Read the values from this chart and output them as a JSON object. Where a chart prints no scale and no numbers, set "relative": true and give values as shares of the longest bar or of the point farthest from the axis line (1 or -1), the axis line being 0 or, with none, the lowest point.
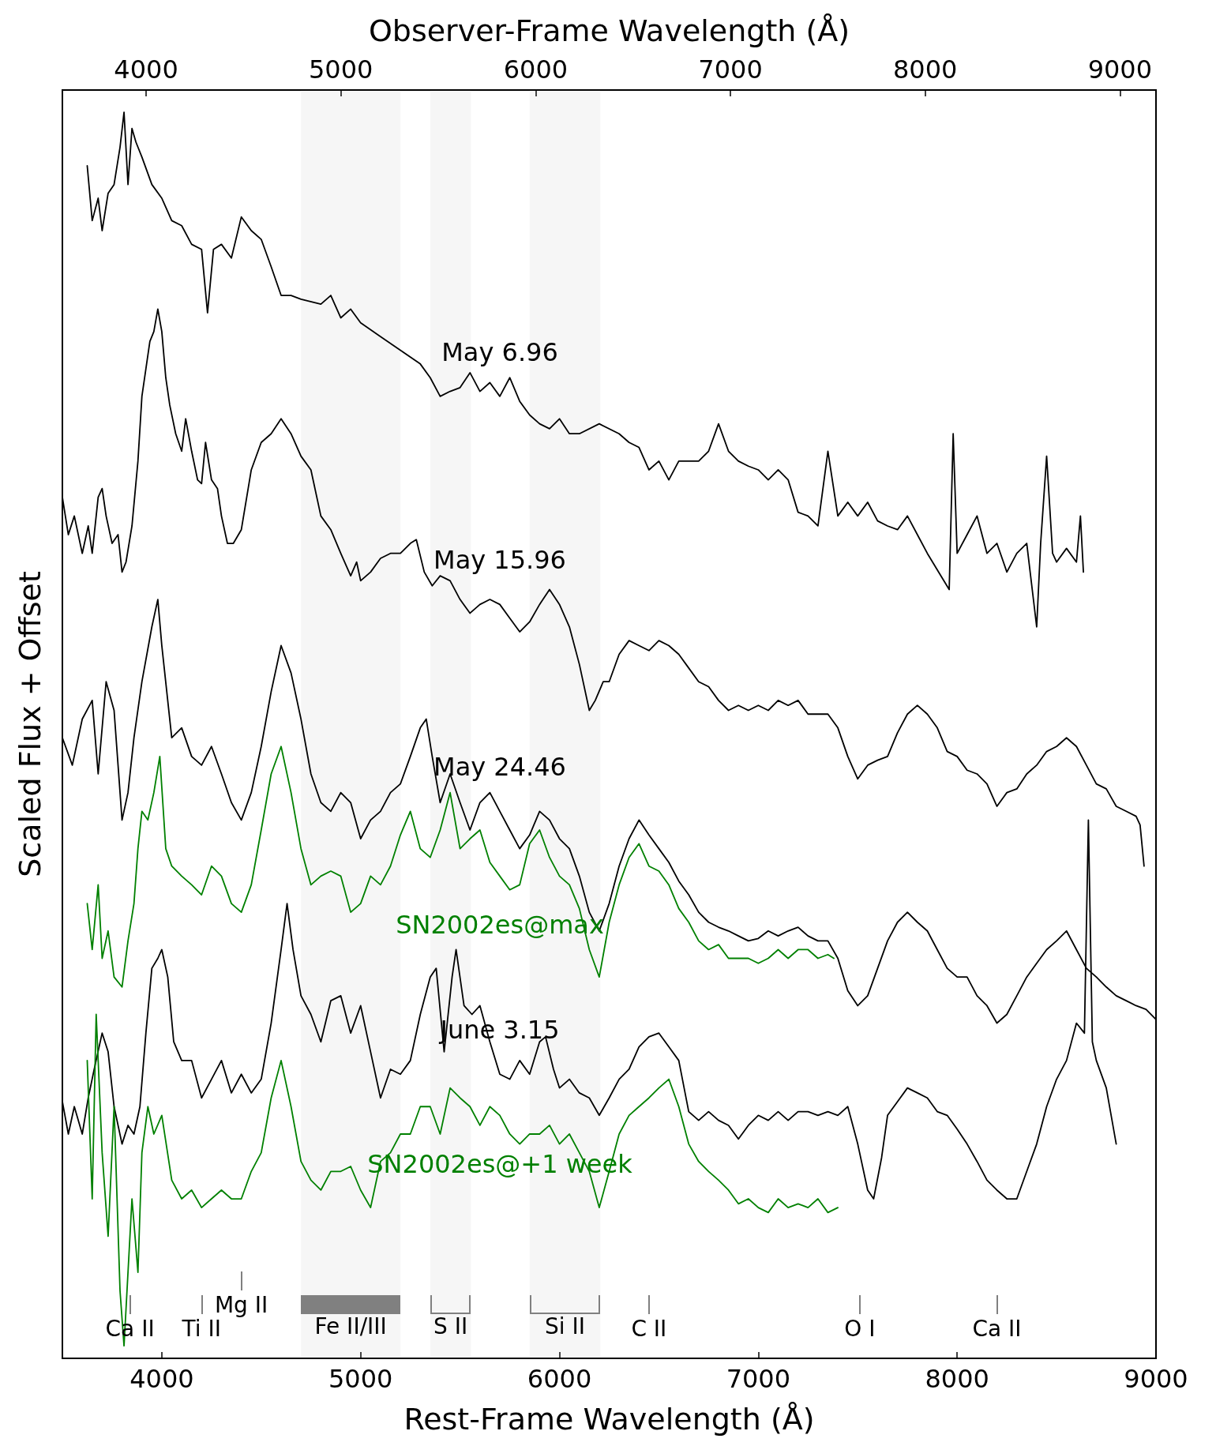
{
  "chart_data": {
    "type": "line",
    "relative": true,
    "xlabel": "Rest-Frame Wavelength (Å)",
    "x2label": "Observer-Frame Wavelength (Å)",
    "ylabel": "Scaled Flux + Offset",
    "xlim": [
      3500,
      9000
    ],
    "xticks": [
      4000,
      5000,
      6000,
      7000,
      8000,
      9000
    ],
    "x2lim": [
      3570,
      9185
    ],
    "x2ticks": [
      4000,
      5000,
      6000,
      7000,
      8000,
      9000
    ],
    "legend": false,
    "grid": false,
    "series": [
      {
        "name": "May 6.96",
        "color": "#000000",
        "x": [
          3625,
          3650,
          3680,
          3700,
          3730,
          3760,
          3790,
          3810,
          3830,
          3850,
          3870,
          3900,
          3950,
          4000,
          4050,
          4100,
          4150,
          4200,
          4230,
          4260,
          4300,
          4350,
          4400,
          4450,
          4500,
          4550,
          4600,
          4650,
          4700,
          4800,
          4850,
          4900,
          4950,
          5000,
          5100,
          5200,
          5300,
          5350,
          5400,
          5450,
          5500,
          5550,
          5600,
          5650,
          5700,
          5750,
          5800,
          5850,
          5900,
          5950,
          6000,
          6050,
          6100,
          6200,
          6300,
          6350,
          6400,
          6450,
          6500,
          6550,
          6600,
          6700,
          6750,
          6800,
          6850,
          6900,
          6950,
          7000,
          7050,
          7100,
          7150,
          7200,
          7250,
          7300,
          7350,
          7400,
          7450,
          7500,
          7550,
          7600,
          7650,
          7700,
          7750,
          7800,
          7850,
          7960,
          7980,
          8000,
          8050,
          8100,
          8150,
          8200,
          8250,
          8300,
          8350,
          8400,
          8420,
          8450,
          8480,
          8500,
          8550,
          8600,
          8620,
          8635
        ],
        "values": [
          0.957,
          0.913,
          0.931,
          0.905,
          0.935,
          0.942,
          0.972,
          1,
          0.942,
          0.987,
          0.976,
          0.964,
          0.942,
          0.931,
          0.913,
          0.909,
          0.894,
          0.89,
          0.839,
          0.89,
          0.894,
          0.883,
          0.916,
          0.905,
          0.898,
          0.876,
          0.853,
          0.853,
          0.85,
          0.846,
          0.853,
          0.835,
          0.842,
          0.831,
          0.82,
          0.809,
          0.798,
          0.787,
          0.772,
          0.776,
          0.779,
          0.791,
          0.776,
          0.783,
          0.772,
          0.787,
          0.768,
          0.757,
          0.75,
          0.746,
          0.754,
          0.742,
          0.742,
          0.75,
          0.742,
          0.735,
          0.731,
          0.713,
          0.72,
          0.705,
          0.72,
          0.72,
          0.728,
          0.75,
          0.728,
          0.72,
          0.716,
          0.713,
          0.705,
          0.713,
          0.705,
          0.679,
          0.676,
          0.668,
          0.728,
          0.676,
          0.687,
          0.676,
          0.687,
          0.672,
          0.668,
          0.665,
          0.676,
          0.661,
          0.646,
          0.617,
          0.742,
          0.646,
          0.661,
          0.676,
          0.646,
          0.654,
          0.631,
          0.646,
          0.654,
          0.587,
          0.654,
          0.724,
          0.646,
          0.639,
          0.65,
          0.639,
          0.676,
          0.631
        ]
      },
      {
        "name": "May 15.96",
        "color": "#000000",
        "x": [
          3500,
          3530,
          3560,
          3600,
          3630,
          3650,
          3680,
          3700,
          3720,
          3750,
          3780,
          3800,
          3820,
          3850,
          3880,
          3900,
          3920,
          3940,
          3960,
          3980,
          4000,
          4020,
          4040,
          4070,
          4100,
          4120,
          4150,
          4180,
          4200,
          4220,
          4250,
          4280,
          4300,
          4330,
          4360,
          4400,
          4450,
          4500,
          4550,
          4600,
          4650,
          4700,
          4750,
          4800,
          4850,
          4900,
          4950,
          4980,
          5000,
          5050,
          5100,
          5150,
          5200,
          5250,
          5280,
          5320,
          5360,
          5400,
          5450,
          5500,
          5550,
          5600,
          5650,
          5700,
          5750,
          5800,
          5850,
          5900,
          5950,
          6000,
          6050,
          6100,
          6150,
          6180,
          6220,
          6250,
          6300,
          6350,
          6400,
          6450,
          6500,
          6550,
          6600,
          6650,
          6700,
          6750,
          6800,
          6850,
          6900,
          6950,
          7000,
          7050,
          7100,
          7150,
          7200,
          7250,
          7300,
          7350,
          7400,
          7450,
          7500,
          7550,
          7600,
          7650,
          7700,
          7750,
          7800,
          7850,
          7900,
          7950,
          8000,
          8050,
          8100,
          8150,
          8200,
          8250,
          8300,
          8350,
          8400,
          8450,
          8500,
          8550,
          8600,
          8650,
          8700,
          8750,
          8800,
          8850,
          8900,
          8920,
          8940
        ],
        "values": [
          0.691,
          0.661,
          0.676,
          0.646,
          0.668,
          0.646,
          0.691,
          0.698,
          0.676,
          0.654,
          0.661,
          0.631,
          0.639,
          0.668,
          0.72,
          0.772,
          0.794,
          0.816,
          0.824,
          0.842,
          0.824,
          0.787,
          0.765,
          0.742,
          0.728,
          0.754,
          0.728,
          0.705,
          0.702,
          0.735,
          0.705,
          0.698,
          0.676,
          0.654,
          0.654,
          0.665,
          0.713,
          0.735,
          0.742,
          0.754,
          0.742,
          0.724,
          0.713,
          0.676,
          0.665,
          0.646,
          0.628,
          0.639,
          0.624,
          0.631,
          0.642,
          0.646,
          0.646,
          0.654,
          0.657,
          0.631,
          0.62,
          0.628,
          0.624,
          0.609,
          0.598,
          0.605,
          0.609,
          0.605,
          0.594,
          0.583,
          0.591,
          0.605,
          0.617,
          0.605,
          0.587,
          0.557,
          0.52,
          0.528,
          0.543,
          0.543,
          0.565,
          0.576,
          0.572,
          0.568,
          0.576,
          0.572,
          0.565,
          0.554,
          0.543,
          0.539,
          0.528,
          0.52,
          0.524,
          0.52,
          0.524,
          0.52,
          0.528,
          0.524,
          0.528,
          0.517,
          0.517,
          0.517,
          0.506,
          0.483,
          0.465,
          0.476,
          0.48,
          0.483,
          0.502,
          0.517,
          0.524,
          0.517,
          0.506,
          0.487,
          0.483,
          0.472,
          0.469,
          0.461,
          0.443,
          0.454,
          0.457,
          0.469,
          0.476,
          0.487,
          0.491,
          0.498,
          0.491,
          0.476,
          0.461,
          0.457,
          0.443,
          0.439,
          0.435,
          0.428,
          0.395
        ]
      },
      {
        "name": "May 24.46",
        "color": "#000000",
        "x": [
          3500,
          3550,
          3600,
          3650,
          3680,
          3720,
          3760,
          3780,
          3800,
          3830,
          3860,
          3900,
          3950,
          3980,
          4000,
          4050,
          4100,
          4150,
          4200,
          4250,
          4300,
          4350,
          4400,
          4450,
          4500,
          4550,
          4600,
          4650,
          4700,
          4750,
          4800,
          4850,
          4900,
          4950,
          5000,
          5050,
          5100,
          5150,
          5200,
          5250,
          5300,
          5330,
          5360,
          5400,
          5450,
          5500,
          5550,
          5600,
          5650,
          5700,
          5750,
          5800,
          5850,
          5900,
          5950,
          6000,
          6050,
          6100,
          6150,
          6200,
          6250,
          6300,
          6350,
          6400,
          6450,
          6500,
          6550,
          6600,
          6650,
          6700,
          6750,
          6800,
          6850,
          6900,
          6950,
          7000,
          7050,
          7100,
          7150,
          7200,
          7250,
          7300,
          7350,
          7400,
          7450,
          7500,
          7550,
          7600,
          7650,
          7700,
          7750,
          7800,
          7850,
          7900,
          7950,
          8000,
          8050,
          8100,
          8150,
          8200,
          8250,
          8300,
          8350,
          8400,
          8450,
          8500,
          8550,
          8600,
          8650,
          8700,
          8750,
          8800,
          8850,
          8900,
          8950,
          9000
        ],
        "values": [
          0.498,
          0.476,
          0.513,
          0.528,
          0.469,
          0.543,
          0.52,
          0.476,
          0.432,
          0.454,
          0.498,
          0.543,
          0.587,
          0.609,
          0.572,
          0.498,
          0.506,
          0.483,
          0.476,
          0.491,
          0.469,
          0.446,
          0.432,
          0.454,
          0.491,
          0.535,
          0.572,
          0.55,
          0.513,
          0.469,
          0.446,
          0.439,
          0.454,
          0.446,
          0.417,
          0.432,
          0.439,
          0.454,
          0.461,
          0.483,
          0.506,
          0.513,
          0.483,
          0.446,
          0.469,
          0.446,
          0.424,
          0.446,
          0.454,
          0.439,
          0.424,
          0.409,
          0.42,
          0.439,
          0.432,
          0.417,
          0.409,
          0.387,
          0.358,
          0.343,
          0.365,
          0.395,
          0.417,
          0.432,
          0.42,
          0.409,
          0.398,
          0.383,
          0.372,
          0.358,
          0.35,
          0.346,
          0.343,
          0.339,
          0.335,
          0.337,
          0.343,
          0.339,
          0.343,
          0.346,
          0.339,
          0.335,
          0.335,
          0.321,
          0.295,
          0.283,
          0.291,
          0.313,
          0.335,
          0.35,
          0.358,
          0.35,
          0.343,
          0.328,
          0.313,
          0.306,
          0.306,
          0.291,
          0.283,
          0.269,
          0.276,
          0.291,
          0.306,
          0.317,
          0.328,
          0.335,
          0.343,
          0.328,
          0.313,
          0.306,
          0.298,
          0.291,
          0.287,
          0.283,
          0.28,
          0.272
        ]
      },
      {
        "name": "SN2002es@max",
        "color": "#008000",
        "x": [
          3625,
          3650,
          3680,
          3700,
          3730,
          3760,
          3800,
          3830,
          3860,
          3880,
          3900,
          3930,
          3960,
          3990,
          4020,
          4050,
          4100,
          4150,
          4200,
          4250,
          4300,
          4350,
          4400,
          4450,
          4500,
          4550,
          4600,
          4650,
          4700,
          4750,
          4800,
          4850,
          4900,
          4950,
          5000,
          5050,
          5100,
          5150,
          5200,
          5250,
          5300,
          5350,
          5400,
          5450,
          5500,
          5550,
          5600,
          5650,
          5700,
          5750,
          5800,
          5850,
          5900,
          5950,
          6000,
          6050,
          6100,
          6150,
          6200,
          6250,
          6300,
          6350,
          6400,
          6450,
          6500,
          6550,
          6600,
          6650,
          6700,
          6750,
          6800,
          6850,
          6900,
          6950,
          7000,
          7050,
          7100,
          7150,
          7200,
          7250,
          7300,
          7350,
          7380
        ],
        "values": [
          0.365,
          0.328,
          0.38,
          0.321,
          0.343,
          0.306,
          0.298,
          0.335,
          0.365,
          0.409,
          0.439,
          0.432,
          0.454,
          0.483,
          0.409,
          0.395,
          0.387,
          0.38,
          0.372,
          0.395,
          0.387,
          0.365,
          0.358,
          0.38,
          0.424,
          0.469,
          0.491,
          0.454,
          0.409,
          0.38,
          0.387,
          0.391,
          0.387,
          0.358,
          0.365,
          0.387,
          0.38,
          0.395,
          0.42,
          0.439,
          0.409,
          0.402,
          0.424,
          0.454,
          0.409,
          0.417,
          0.424,
          0.398,
          0.387,
          0.376,
          0.38,
          0.413,
          0.424,
          0.402,
          0.387,
          0.38,
          0.361,
          0.328,
          0.306,
          0.35,
          0.38,
          0.402,
          0.413,
          0.395,
          0.391,
          0.38,
          0.361,
          0.35,
          0.335,
          0.328,
          0.332,
          0.321,
          0.321,
          0.321,
          0.317,
          0.321,
          0.328,
          0.321,
          0.328,
          0.328,
          0.321,
          0.324,
          0.321
        ]
      },
      {
        "name": "June 3.15",
        "color": "#000000",
        "x": [
          3500,
          3530,
          3560,
          3600,
          3630,
          3660,
          3700,
          3730,
          3760,
          3800,
          3830,
          3860,
          3890,
          3920,
          3950,
          3980,
          4000,
          4030,
          4060,
          4100,
          4150,
          4200,
          4250,
          4300,
          4350,
          4400,
          4450,
          4500,
          4550,
          4600,
          4630,
          4660,
          4700,
          4750,
          4800,
          4850,
          4900,
          4950,
          5000,
          5050,
          5100,
          5150,
          5200,
          5250,
          5300,
          5350,
          5380,
          5420,
          5460,
          5480,
          5520,
          5560,
          5600,
          5650,
          5700,
          5750,
          5800,
          5850,
          5900,
          5930,
          5970,
          6000,
          6050,
          6100,
          6150,
          6200,
          6250,
          6300,
          6350,
          6400,
          6450,
          6500,
          6550,
          6600,
          6650,
          6700,
          6750,
          6800,
          6850,
          6900,
          6950,
          7000,
          7050,
          7100,
          7150,
          7200,
          7250,
          7300,
          7350,
          7400,
          7450,
          7500,
          7550,
          7580,
          7620,
          7650,
          7700,
          7750,
          7800,
          7850,
          7900,
          7950,
          8000,
          8050,
          8100,
          8150,
          8200,
          8250,
          8300,
          8350,
          8400,
          8450,
          8500,
          8550,
          8600,
          8640,
          8660,
          8680,
          8700,
          8750,
          8800
        ],
        "values": [
          0.206,
          0.18,
          0.202,
          0.18,
          0.209,
          0.232,
          0.261,
          0.246,
          0.202,
          0.172,
          0.187,
          0.18,
          0.202,
          0.261,
          0.313,
          0.321,
          0.328,
          0.306,
          0.254,
          0.239,
          0.239,
          0.209,
          0.224,
          0.239,
          0.213,
          0.228,
          0.213,
          0.224,
          0.269,
          0.328,
          0.365,
          0.328,
          0.291,
          0.276,
          0.254,
          0.287,
          0.291,
          0.261,
          0.283,
          0.246,
          0.209,
          0.232,
          0.228,
          0.239,
          0.276,
          0.306,
          0.313,
          0.246,
          0.306,
          0.328,
          0.283,
          0.276,
          0.283,
          0.254,
          0.228,
          0.224,
          0.239,
          0.228,
          0.254,
          0.258,
          0.232,
          0.217,
          0.224,
          0.213,
          0.209,
          0.195,
          0.209,
          0.224,
          0.232,
          0.25,
          0.258,
          0.261,
          0.25,
          0.239,
          0.198,
          0.191,
          0.198,
          0.191,
          0.187,
          0.176,
          0.187,
          0.195,
          0.191,
          0.198,
          0.191,
          0.198,
          0.198,
          0.195,
          0.198,
          0.195,
          0.202,
          0.172,
          0.135,
          0.128,
          0.161,
          0.195,
          0.206,
          0.217,
          0.213,
          0.209,
          0.198,
          0.195,
          0.184,
          0.172,
          0.158,
          0.143,
          0.135,
          0.128,
          0.128,
          0.15,
          0.172,
          0.202,
          0.224,
          0.239,
          0.269,
          0.261,
          0.432,
          0.254,
          0.239,
          0.217,
          0.172
        ]
      },
      {
        "name": "SN2002es@+1 week",
        "color": "#008000",
        "x": [
          3625,
          3650,
          3670,
          3700,
          3730,
          3760,
          3790,
          3810,
          3850,
          3880,
          3900,
          3930,
          3960,
          4000,
          4050,
          4100,
          4150,
          4200,
          4250,
          4300,
          4350,
          4400,
          4450,
          4500,
          4550,
          4600,
          4650,
          4700,
          4750,
          4800,
          4850,
          4900,
          4950,
          5000,
          5050,
          5100,
          5150,
          5200,
          5250,
          5300,
          5350,
          5400,
          5450,
          5500,
          5550,
          5600,
          5650,
          5700,
          5750,
          5800,
          5850,
          5900,
          5950,
          6000,
          6050,
          6100,
          6150,
          6200,
          6250,
          6300,
          6350,
          6400,
          6450,
          6500,
          6550,
          6600,
          6650,
          6700,
          6750,
          6800,
          6850,
          6900,
          6950,
          7000,
          7050,
          7100,
          7150,
          7200,
          7250,
          7300,
          7350,
          7400
        ],
        "values": [
          0.239,
          0.128,
          0.276,
          0.165,
          0.098,
          0.202,
          0.054,
          0.01,
          0.128,
          0.069,
          0.165,
          0.202,
          0.18,
          0.195,
          0.143,
          0.128,
          0.135,
          0.121,
          0.128,
          0.135,
          0.128,
          0.128,
          0.15,
          0.165,
          0.209,
          0.239,
          0.202,
          0.158,
          0.143,
          0.135,
          0.15,
          0.15,
          0.154,
          0.135,
          0.121,
          0.158,
          0.165,
          0.18,
          0.18,
          0.202,
          0.202,
          0.18,
          0.217,
          0.209,
          0.202,
          0.187,
          0.202,
          0.195,
          0.18,
          0.172,
          0.18,
          0.18,
          0.187,
          0.172,
          0.18,
          0.165,
          0.15,
          0.121,
          0.15,
          0.18,
          0.195,
          0.202,
          0.209,
          0.217,
          0.224,
          0.202,
          0.172,
          0.158,
          0.15,
          0.143,
          0.135,
          0.124,
          0.128,
          0.121,
          0.117,
          0.128,
          0.121,
          0.124,
          0.121,
          0.128,
          0.117,
          0.121
        ]
      }
    ],
    "ref_lines": [
      {
        "axis": "x",
        "value": 3840,
        "label": "Ca II",
        "color": "#808080"
      },
      {
        "axis": "x",
        "value": 4200,
        "label": "Ti II",
        "color": "#808080"
      },
      {
        "axis": "x",
        "value": 4400,
        "label": "Mg II",
        "color": "#808080"
      },
      {
        "axis": "x",
        "value": 6450,
        "label": "C II",
        "color": "#808080"
      },
      {
        "axis": "x",
        "value": 7510,
        "label": "O I",
        "color": "#808080"
      },
      {
        "axis": "x",
        "value": 8200,
        "label": "Ca II",
        "color": "#808080"
      }
    ],
    "bands": [
      {
        "axis": "x",
        "from": 4700,
        "to": 5200,
        "label": "Fe II/III",
        "color": "#808080"
      },
      {
        "axis": "x",
        "from": 5350,
        "to": 5555,
        "label": "S II"
      },
      {
        "axis": "x",
        "from": 5850,
        "to": 6205,
        "label": "Si II"
      }
    ]
  }
}
